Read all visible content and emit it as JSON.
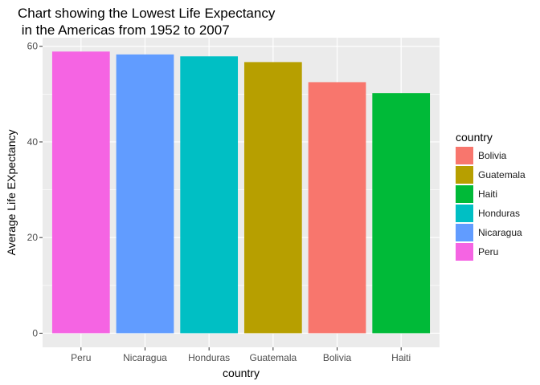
{
  "chart_data": {
    "type": "bar",
    "title": "Chart showing the Lowest Life Expectancy\n in the Americas from 1952 to 2007",
    "xlabel": "country",
    "ylabel": "Average Life EXpectancy",
    "ylim": [
      0,
      60
    ],
    "yticks": [
      0,
      20,
      40,
      60
    ],
    "grid": true,
    "categories": [
      "Peru",
      "Nicaragua",
      "Honduras",
      "Guatemala",
      "Bolivia",
      "Haiti"
    ],
    "values": [
      58.9,
      58.3,
      57.9,
      56.7,
      52.5,
      50.2
    ],
    "bar_colors": [
      "#F564E3",
      "#619CFF",
      "#00BFC4",
      "#B79F00",
      "#F8766D",
      "#00BA38"
    ],
    "legend": {
      "title": "country",
      "placement": "right",
      "items": [
        {
          "label": "Bolivia",
          "color": "#F8766D"
        },
        {
          "label": "Guatemala",
          "color": "#B79F00"
        },
        {
          "label": "Haiti",
          "color": "#00BA38"
        },
        {
          "label": "Honduras",
          "color": "#00BFC4"
        },
        {
          "label": "Nicaragua",
          "color": "#619CFF"
        },
        {
          "label": "Peru",
          "color": "#F564E3"
        }
      ]
    }
  }
}
